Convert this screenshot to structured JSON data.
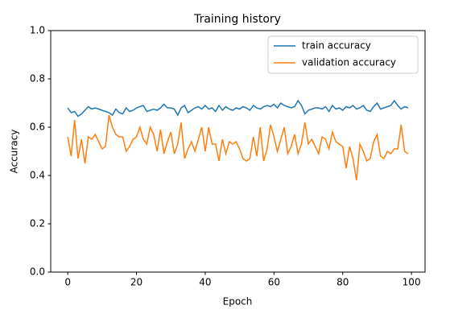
{
  "chart_data": {
    "type": "line",
    "title": "Training history",
    "xlabel": "Epoch",
    "ylabel": "Accuracy",
    "x": [
      0,
      1,
      2,
      3,
      4,
      5,
      6,
      7,
      8,
      9,
      10,
      11,
      12,
      13,
      14,
      15,
      16,
      17,
      18,
      19,
      20,
      21,
      22,
      23,
      24,
      25,
      26,
      27,
      28,
      29,
      30,
      31,
      32,
      33,
      34,
      35,
      36,
      37,
      38,
      39,
      40,
      41,
      42,
      43,
      44,
      45,
      46,
      47,
      48,
      49,
      50,
      51,
      52,
      53,
      54,
      55,
      56,
      57,
      58,
      59,
      60,
      61,
      62,
      63,
      64,
      65,
      66,
      67,
      68,
      69,
      70,
      71,
      72,
      73,
      74,
      75,
      76,
      77,
      78,
      79,
      80,
      81,
      82,
      83,
      84,
      85,
      86,
      87,
      88,
      89,
      90,
      91,
      92,
      93,
      94,
      95,
      96,
      97,
      98,
      99
    ],
    "series": [
      {
        "name": "train accuracy",
        "color": "#1f77b4",
        "values": [
          0.68,
          0.66,
          0.665,
          0.645,
          0.655,
          0.67,
          0.685,
          0.675,
          0.68,
          0.675,
          0.67,
          0.665,
          0.66,
          0.65,
          0.675,
          0.66,
          0.655,
          0.68,
          0.665,
          0.67,
          0.68,
          0.685,
          0.69,
          0.665,
          0.67,
          0.675,
          0.67,
          0.68,
          0.695,
          0.68,
          0.68,
          0.675,
          0.65,
          0.68,
          0.69,
          0.66,
          0.67,
          0.68,
          0.685,
          0.675,
          0.69,
          0.675,
          0.68,
          0.665,
          0.69,
          0.67,
          0.685,
          0.675,
          0.67,
          0.68,
          0.675,
          0.685,
          0.68,
          0.67,
          0.69,
          0.68,
          0.675,
          0.685,
          0.69,
          0.685,
          0.695,
          0.68,
          0.7,
          0.69,
          0.685,
          0.68,
          0.685,
          0.71,
          0.69,
          0.655,
          0.67,
          0.675,
          0.68,
          0.68,
          0.675,
          0.685,
          0.665,
          0.69,
          0.675,
          0.68,
          0.67,
          0.685,
          0.68,
          0.69,
          0.675,
          0.68,
          0.69,
          0.67,
          0.665,
          0.685,
          0.7,
          0.675,
          0.68,
          0.685,
          0.69,
          0.71,
          0.69,
          0.675,
          0.685,
          0.68
        ]
      },
      {
        "name": "validation accuracy",
        "color": "#ff7f0e",
        "values": [
          0.56,
          0.48,
          0.63,
          0.47,
          0.55,
          0.45,
          0.56,
          0.55,
          0.57,
          0.54,
          0.51,
          0.52,
          0.65,
          0.6,
          0.57,
          0.56,
          0.56,
          0.5,
          0.52,
          0.55,
          0.56,
          0.6,
          0.55,
          0.53,
          0.6,
          0.57,
          0.5,
          0.59,
          0.49,
          0.54,
          0.58,
          0.49,
          0.53,
          0.62,
          0.47,
          0.51,
          0.54,
          0.5,
          0.55,
          0.6,
          0.5,
          0.6,
          0.53,
          0.53,
          0.46,
          0.55,
          0.49,
          0.54,
          0.53,
          0.54,
          0.51,
          0.47,
          0.46,
          0.47,
          0.56,
          0.48,
          0.6,
          0.46,
          0.51,
          0.61,
          0.56,
          0.5,
          0.55,
          0.6,
          0.49,
          0.52,
          0.57,
          0.49,
          0.53,
          0.62,
          0.53,
          0.55,
          0.52,
          0.49,
          0.56,
          0.55,
          0.51,
          0.58,
          0.54,
          0.53,
          0.52,
          0.43,
          0.52,
          0.47,
          0.38,
          0.53,
          0.5,
          0.46,
          0.47,
          0.54,
          0.57,
          0.48,
          0.47,
          0.5,
          0.49,
          0.51,
          0.51,
          0.61,
          0.5,
          0.49
        ]
      }
    ],
    "xlim": [
      -4.95,
      103.95
    ],
    "xticks": [
      0,
      20,
      40,
      60,
      80,
      100
    ],
    "ylim": [
      0,
      1
    ],
    "yticks": [
      {
        "value": 0,
        "label": "0.0"
      },
      {
        "value": 0.2,
        "label": "0.2"
      },
      {
        "value": 0.4,
        "label": "0.4"
      },
      {
        "value": 0.6,
        "label": "0.6"
      },
      {
        "value": 0.8,
        "label": "0.8"
      },
      {
        "value": 1,
        "label": "1.0"
      }
    ],
    "legend": "upper right",
    "grid": false
  }
}
